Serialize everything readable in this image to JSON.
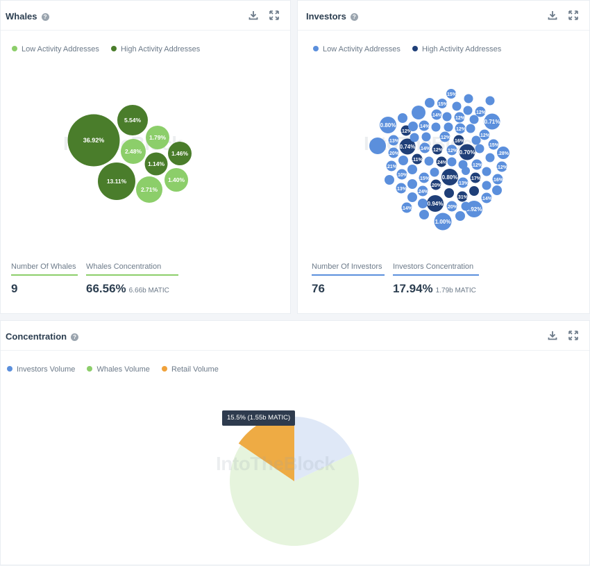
{
  "whales": {
    "title": "Whales",
    "legend": [
      {
        "label": "Low Activity Addresses",
        "color": "#8cce6a"
      },
      {
        "label": "High Activity Addresses",
        "color": "#4a7d2b"
      }
    ],
    "stats": {
      "count_label": "Number Of Whales",
      "count_value": "9",
      "conc_label": "Whales Concentration",
      "conc_value": "66.56%",
      "conc_sub": "6.66b MATIC"
    },
    "bubble_values": [
      "36.92%",
      "5.54%",
      "1.79%",
      "2.48%",
      "1.46%",
      "1.14%",
      "13.11%",
      "1.40%",
      "2.71%"
    ]
  },
  "investors": {
    "title": "Investors",
    "legend": [
      {
        "label": "Low Activity Addresses",
        "color": "#5b8fdc"
      },
      {
        "label": "High Activity Addresses",
        "color": "#1f3f78"
      }
    ],
    "stats": {
      "count_label": "Number Of Investors",
      "count_value": "76",
      "conc_label": "Investors Concentration",
      "conc_value": "17.94%",
      "conc_sub": "1.79b MATIC"
    },
    "bubble_values": [
      "0.80%",
      "0.71%",
      "0.74%",
      "0.70%",
      "0.80%",
      "0.94%",
      "1.00%",
      "0.92%",
      ".15%",
      ".13%",
      ".20%",
      ".21%",
      ".10%",
      ".11%",
      ".24%",
      ".12%",
      ".16%",
      ".14%",
      ".17%",
      ".28%",
      ".31%"
    ]
  },
  "concentration": {
    "title": "Concentration",
    "legend": [
      {
        "label": "Investors Volume",
        "color": "#5b8fdc"
      },
      {
        "label": "Whales Volume",
        "color": "#8cce6a"
      },
      {
        "label": "Retail Volume",
        "color": "#f0a23b"
      }
    ],
    "tooltip": "15.5% (1.55b MATIC)"
  },
  "chart_data": {
    "type": "pie",
    "title": "Concentration",
    "categories": [
      "Investors Volume",
      "Whales Volume",
      "Retail Volume"
    ],
    "values": [
      17.94,
      66.56,
      15.5
    ],
    "colors": [
      "#dfe8f7",
      "#e6f4dd",
      "#eeab44"
    ],
    "highlighted": "Retail Volume"
  },
  "brand": {
    "watermark": "IntoTheBlock"
  }
}
